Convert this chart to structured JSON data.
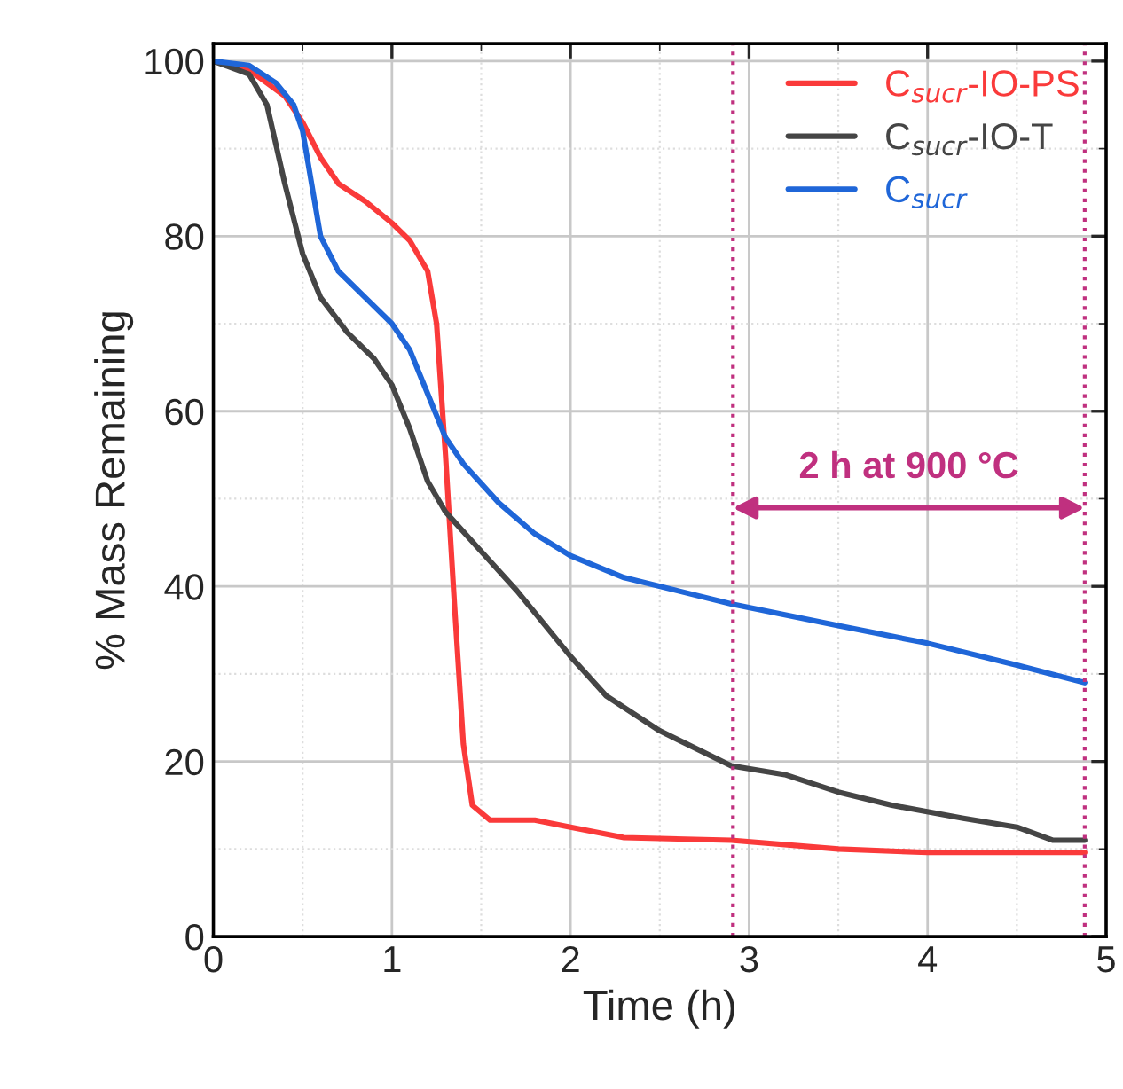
{
  "chart_data": {
    "type": "line",
    "xlabel": "Time (h)",
    "ylabel": "% Mass Remaining",
    "xlim": [
      0,
      5
    ],
    "ylim": [
      0,
      102
    ],
    "xticks": [
      0,
      1,
      2,
      3,
      4,
      5
    ],
    "yticks": [
      0,
      20,
      40,
      60,
      80,
      100
    ],
    "grid": true,
    "legend": "top right",
    "line_style": "solid",
    "marker": "none",
    "series": [
      {
        "name": "C$_{sucr}$-IO-PS",
        "color": "#fa3a3a",
        "x": [
          0,
          0.2,
          0.4,
          0.5,
          0.6,
          0.7,
          0.85,
          1.0,
          1.1,
          1.2,
          1.25,
          1.3,
          1.35,
          1.4,
          1.45,
          1.55,
          1.8,
          2.0,
          2.3,
          2.9,
          3.5,
          4.0,
          4.5,
          4.88
        ],
        "values": [
          100,
          99,
          96,
          93,
          89,
          86,
          84,
          81.5,
          79.5,
          76,
          70,
          55,
          38,
          22,
          15,
          13.3,
          13.3,
          12.5,
          11.3,
          11,
          10,
          9.6,
          9.6,
          9.6
        ]
      },
      {
        "name": "C$_{sucr}$-IO-T",
        "color": "#454545",
        "x": [
          0,
          0.2,
          0.3,
          0.4,
          0.5,
          0.6,
          0.75,
          0.9,
          1.0,
          1.1,
          1.2,
          1.3,
          1.5,
          1.7,
          2.0,
          2.2,
          2.5,
          2.9,
          3.2,
          3.5,
          3.8,
          4.2,
          4.5,
          4.7,
          4.88
        ],
        "values": [
          100,
          98.5,
          95,
          86,
          78,
          73,
          69,
          66,
          63,
          58,
          52,
          48.5,
          44,
          39.5,
          32,
          27.5,
          23.5,
          19.5,
          18.5,
          16.5,
          15,
          13.5,
          12.5,
          11,
          11
        ]
      },
      {
        "name": "C$_{sucr}$",
        "color": "#1f66d8",
        "x": [
          0,
          0.2,
          0.35,
          0.45,
          0.5,
          0.55,
          0.6,
          0.7,
          0.85,
          1.0,
          1.1,
          1.2,
          1.3,
          1.4,
          1.6,
          1.8,
          2.0,
          2.3,
          2.6,
          2.9,
          3.5,
          4.0,
          4.5,
          4.88
        ],
        "values": [
          100,
          99.5,
          97.5,
          95,
          92,
          86,
          80,
          76,
          73,
          70,
          67,
          62,
          57,
          54,
          49.5,
          46,
          43.5,
          41,
          39.5,
          38,
          35.5,
          33.5,
          31,
          29
        ]
      }
    ],
    "ref_lines": [
      {
        "axis": "x",
        "value": 2.91,
        "color": "#c0307f",
        "line_style": "dotted"
      },
      {
        "axis": "x",
        "value": 4.88,
        "color": "#c0307f",
        "line_style": "dotted"
      }
    ],
    "annotations": [
      "2 h at 900 °C"
    ]
  }
}
